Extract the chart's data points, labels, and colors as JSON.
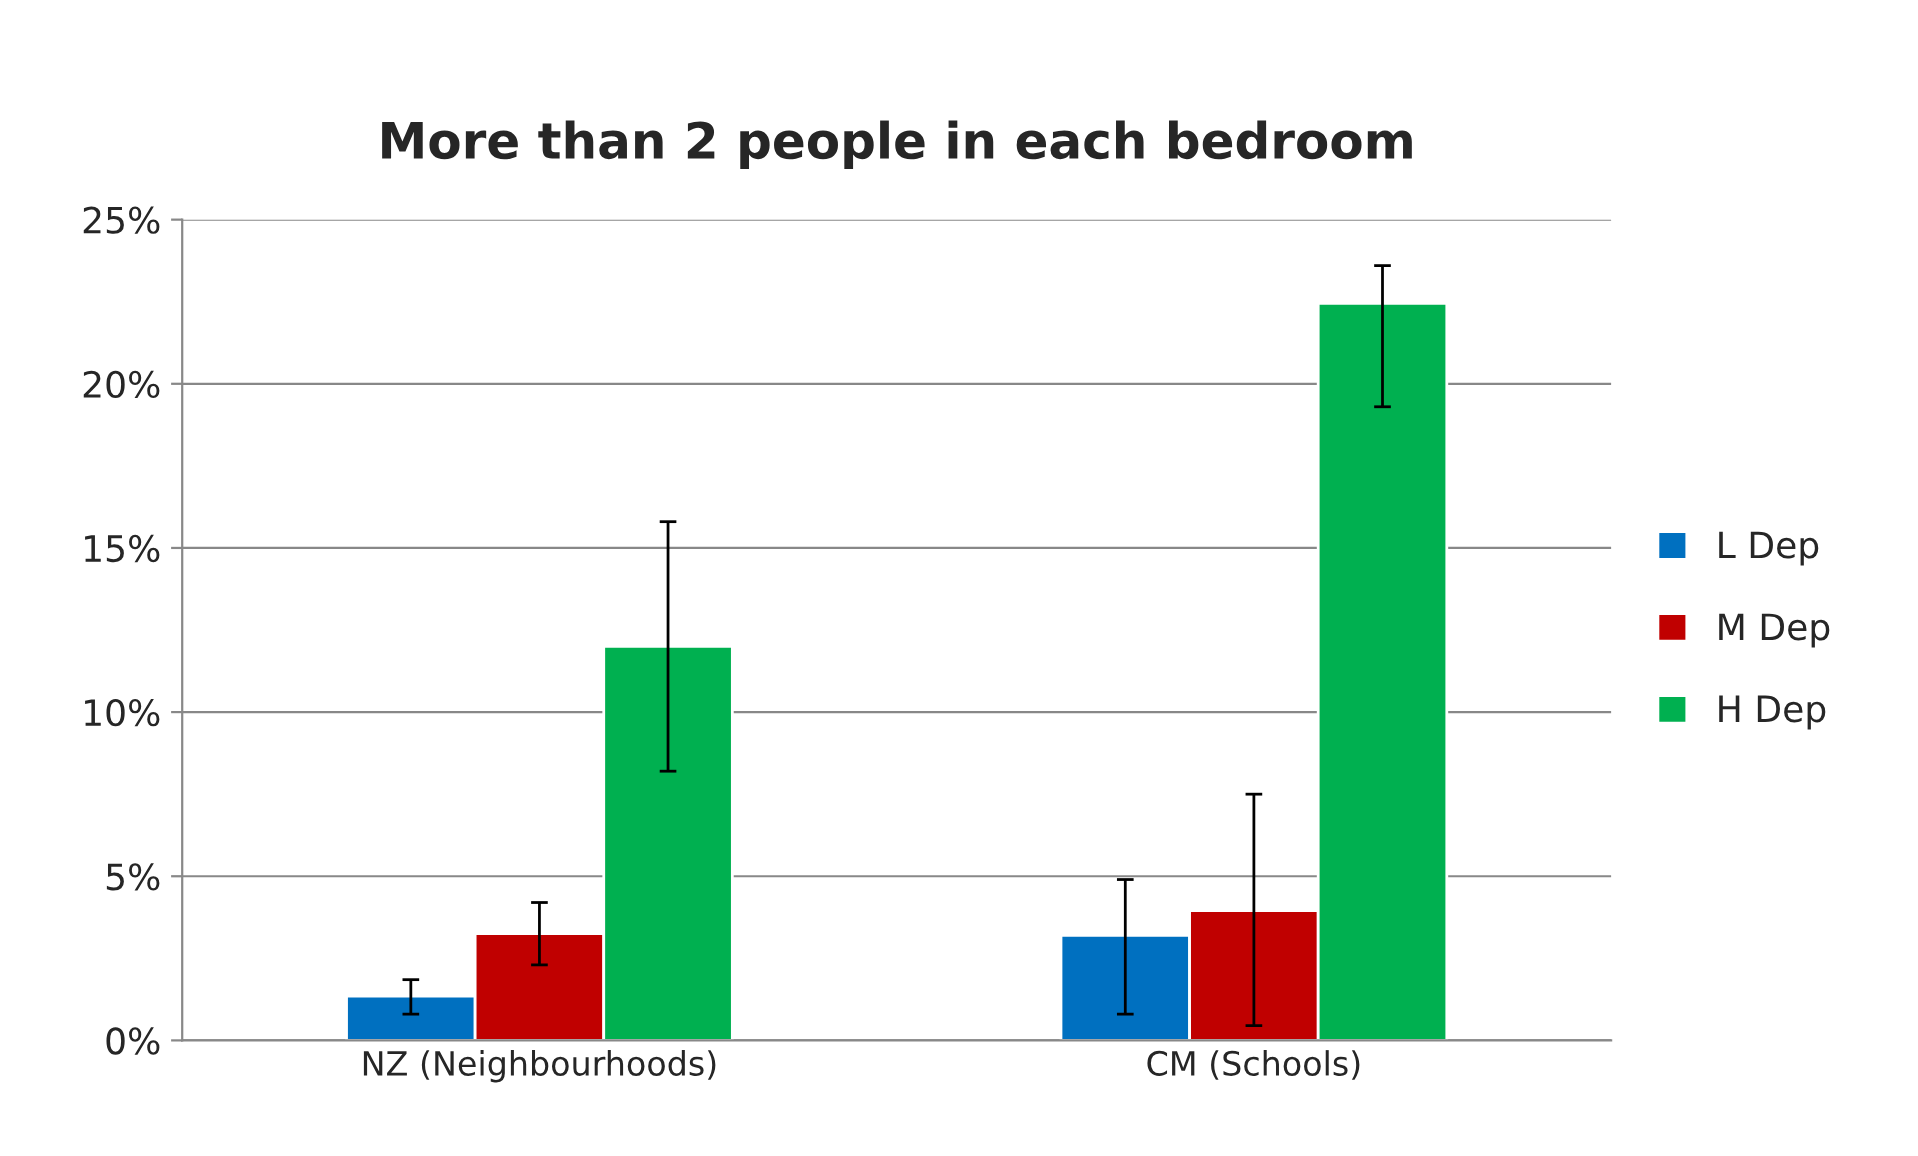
{
  "chart_data": {
    "type": "bar",
    "title": "More than 2 people in each bedroom",
    "categories": [
      "NZ (Neighbourhoods)",
      "CM (Schools)"
    ],
    "series": [
      {
        "name": "L Dep",
        "color": "#0070c0",
        "values": [
          1.35,
          3.2
        ],
        "errors": [
          [
            0.8,
            1.85
          ],
          [
            0.8,
            4.9
          ]
        ]
      },
      {
        "name": "M Dep",
        "color": "#c00000",
        "values": [
          3.25,
          3.95
        ],
        "errors": [
          [
            2.3,
            4.2
          ],
          [
            0.45,
            7.5
          ]
        ]
      },
      {
        "name": "H Dep",
        "color": "#00b050",
        "values": [
          12.0,
          22.45
        ],
        "errors": [
          [
            8.2,
            15.8
          ],
          [
            19.3,
            23.6
          ]
        ]
      }
    ],
    "ylim": [
      0,
      25
    ],
    "yticks": [
      {
        "value": 0,
        "label": "0%"
      },
      {
        "value": 5,
        "label": "5%"
      },
      {
        "value": 10,
        "label": "10%"
      },
      {
        "value": 15,
        "label": "15%"
      },
      {
        "value": 20,
        "label": "20%"
      },
      {
        "value": 25,
        "label": "25%"
      }
    ],
    "grid": "y",
    "legend": "right"
  }
}
